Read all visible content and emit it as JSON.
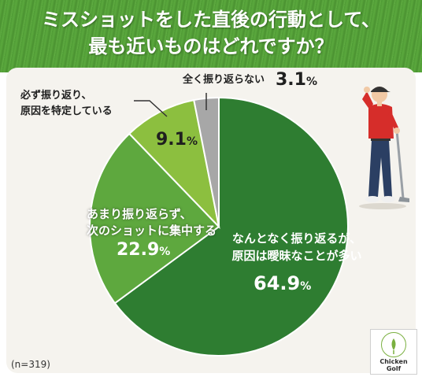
{
  "title_line1": "ミスショットをした直後の行動として、",
  "title_line2": "最も近いものはどれですか？",
  "sample_note": "(n=319)",
  "logo": {
    "line1": "Chicken",
    "line2": "Golf"
  },
  "chart_data": {
    "type": "pie",
    "title": "ミスショットをした直後の行動として、最も近いものはどれですか？",
    "unit": "%",
    "slices": [
      {
        "label": "なんとなく振り返るが、原因は曖昧なことが多い",
        "line1": "なんとなく振り返るが、",
        "line2": "原因は曖昧なことが多い",
        "value": 64.9,
        "color": "#2e7d31"
      },
      {
        "label": "あまり振り返らず、次のショットに集中する",
        "line1": "あまり振り返らず、",
        "line2": "次のショットに集中する",
        "value": 22.9,
        "color": "#5ea83e"
      },
      {
        "label": "必ず振り返り、原因を特定している",
        "line1": "必ず振り返り、",
        "line2": "原因を特定している",
        "value": 9.1,
        "color": "#8cbf3f"
      },
      {
        "label": "全く振り返らない",
        "line1": "全く振り返らない",
        "line2": "",
        "value": 3.1,
        "color": "#a7a7a7"
      }
    ]
  }
}
